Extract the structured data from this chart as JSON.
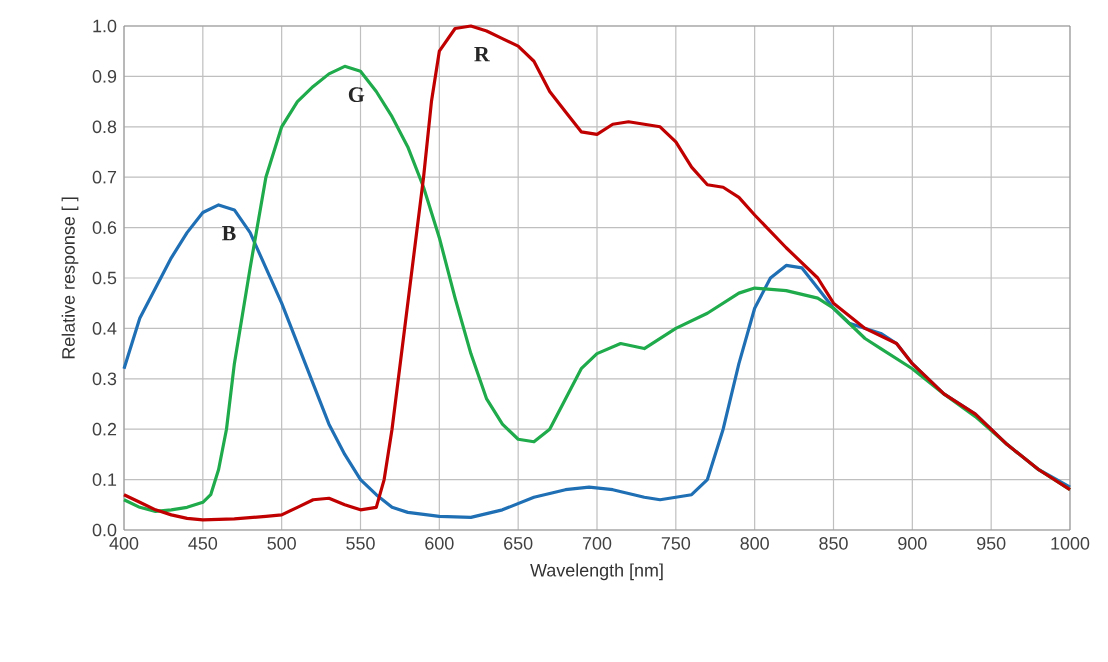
{
  "chart_data": {
    "type": "line",
    "xlabel": "Wavelength [nm]",
    "ylabel": "Relative response [ ]",
    "xlim": [
      400,
      1000
    ],
    "xticks": [
      400,
      450,
      500,
      550,
      600,
      650,
      700,
      750,
      800,
      850,
      900,
      950,
      1000
    ],
    "ylim": [
      0,
      1
    ],
    "yticks": [
      {
        "value": 0,
        "label": "0.0"
      },
      0.1,
      0.2,
      0.3,
      0.4,
      0.5,
      0.6,
      0.7,
      0.8,
      0.9,
      {
        "value": 1,
        "label": "1.0"
      }
    ],
    "grid": true,
    "legend": false,
    "marker": "none",
    "line_style": "solid",
    "series": [
      {
        "name": "B",
        "color": "#1f6fb5",
        "x": [
          400,
          410,
          420,
          430,
          440,
          450,
          460,
          470,
          480,
          490,
          500,
          510,
          520,
          530,
          540,
          550,
          560,
          570,
          580,
          600,
          620,
          640,
          660,
          680,
          695,
          710,
          730,
          740,
          760,
          770,
          780,
          790,
          800,
          810,
          820,
          830,
          840,
          850,
          860,
          880,
          890,
          900,
          920,
          940,
          960,
          980,
          1000
        ],
        "values": [
          0.32,
          0.42,
          0.48,
          0.54,
          0.59,
          0.63,
          0.645,
          0.635,
          0.59,
          0.52,
          0.45,
          0.37,
          0.29,
          0.21,
          0.15,
          0.1,
          0.07,
          0.045,
          0.035,
          0.027,
          0.025,
          0.04,
          0.065,
          0.08,
          0.085,
          0.08,
          0.065,
          0.06,
          0.07,
          0.1,
          0.2,
          0.33,
          0.44,
          0.5,
          0.525,
          0.52,
          0.48,
          0.44,
          0.41,
          0.39,
          0.37,
          0.33,
          0.27,
          0.23,
          0.17,
          0.12,
          0.085
        ]
      },
      {
        "name": "G",
        "color": "#1faa4b",
        "x": [
          400,
          410,
          420,
          430,
          440,
          450,
          455,
          460,
          465,
          470,
          480,
          490,
          500,
          510,
          520,
          530,
          540,
          550,
          560,
          570,
          580,
          590,
          600,
          610,
          620,
          630,
          640,
          650,
          660,
          670,
          680,
          690,
          700,
          715,
          730,
          740,
          750,
          770,
          790,
          800,
          820,
          840,
          850,
          870,
          880,
          900,
          920,
          940,
          960,
          980,
          1000
        ],
        "values": [
          0.06,
          0.045,
          0.037,
          0.04,
          0.045,
          0.055,
          0.07,
          0.12,
          0.2,
          0.33,
          0.52,
          0.7,
          0.8,
          0.85,
          0.88,
          0.905,
          0.92,
          0.91,
          0.87,
          0.82,
          0.76,
          0.68,
          0.58,
          0.46,
          0.35,
          0.26,
          0.21,
          0.18,
          0.175,
          0.2,
          0.26,
          0.32,
          0.35,
          0.37,
          0.36,
          0.38,
          0.4,
          0.43,
          0.47,
          0.48,
          0.475,
          0.46,
          0.44,
          0.38,
          0.36,
          0.32,
          0.27,
          0.225,
          0.17,
          0.12,
          0.08
        ]
      },
      {
        "name": "R",
        "color": "#c00000",
        "x": [
          400,
          410,
          420,
          430,
          440,
          450,
          470,
          490,
          500,
          510,
          520,
          530,
          540,
          550,
          560,
          565,
          570,
          580,
          590,
          595,
          600,
          610,
          620,
          630,
          640,
          650,
          660,
          670,
          680,
          690,
          700,
          710,
          720,
          730,
          740,
          750,
          760,
          770,
          780,
          790,
          800,
          820,
          840,
          850,
          870,
          890,
          900,
          920,
          940,
          960,
          980,
          1000
        ],
        "values": [
          0.07,
          0.055,
          0.04,
          0.03,
          0.023,
          0.02,
          0.022,
          0.027,
          0.03,
          0.045,
          0.06,
          0.063,
          0.05,
          0.04,
          0.045,
          0.1,
          0.2,
          0.45,
          0.7,
          0.85,
          0.95,
          0.995,
          1.0,
          0.99,
          0.975,
          0.96,
          0.93,
          0.87,
          0.83,
          0.79,
          0.785,
          0.805,
          0.81,
          0.805,
          0.8,
          0.77,
          0.72,
          0.685,
          0.68,
          0.66,
          0.625,
          0.56,
          0.5,
          0.45,
          0.4,
          0.37,
          0.33,
          0.27,
          0.23,
          0.17,
          0.12,
          0.08
        ]
      }
    ]
  }
}
